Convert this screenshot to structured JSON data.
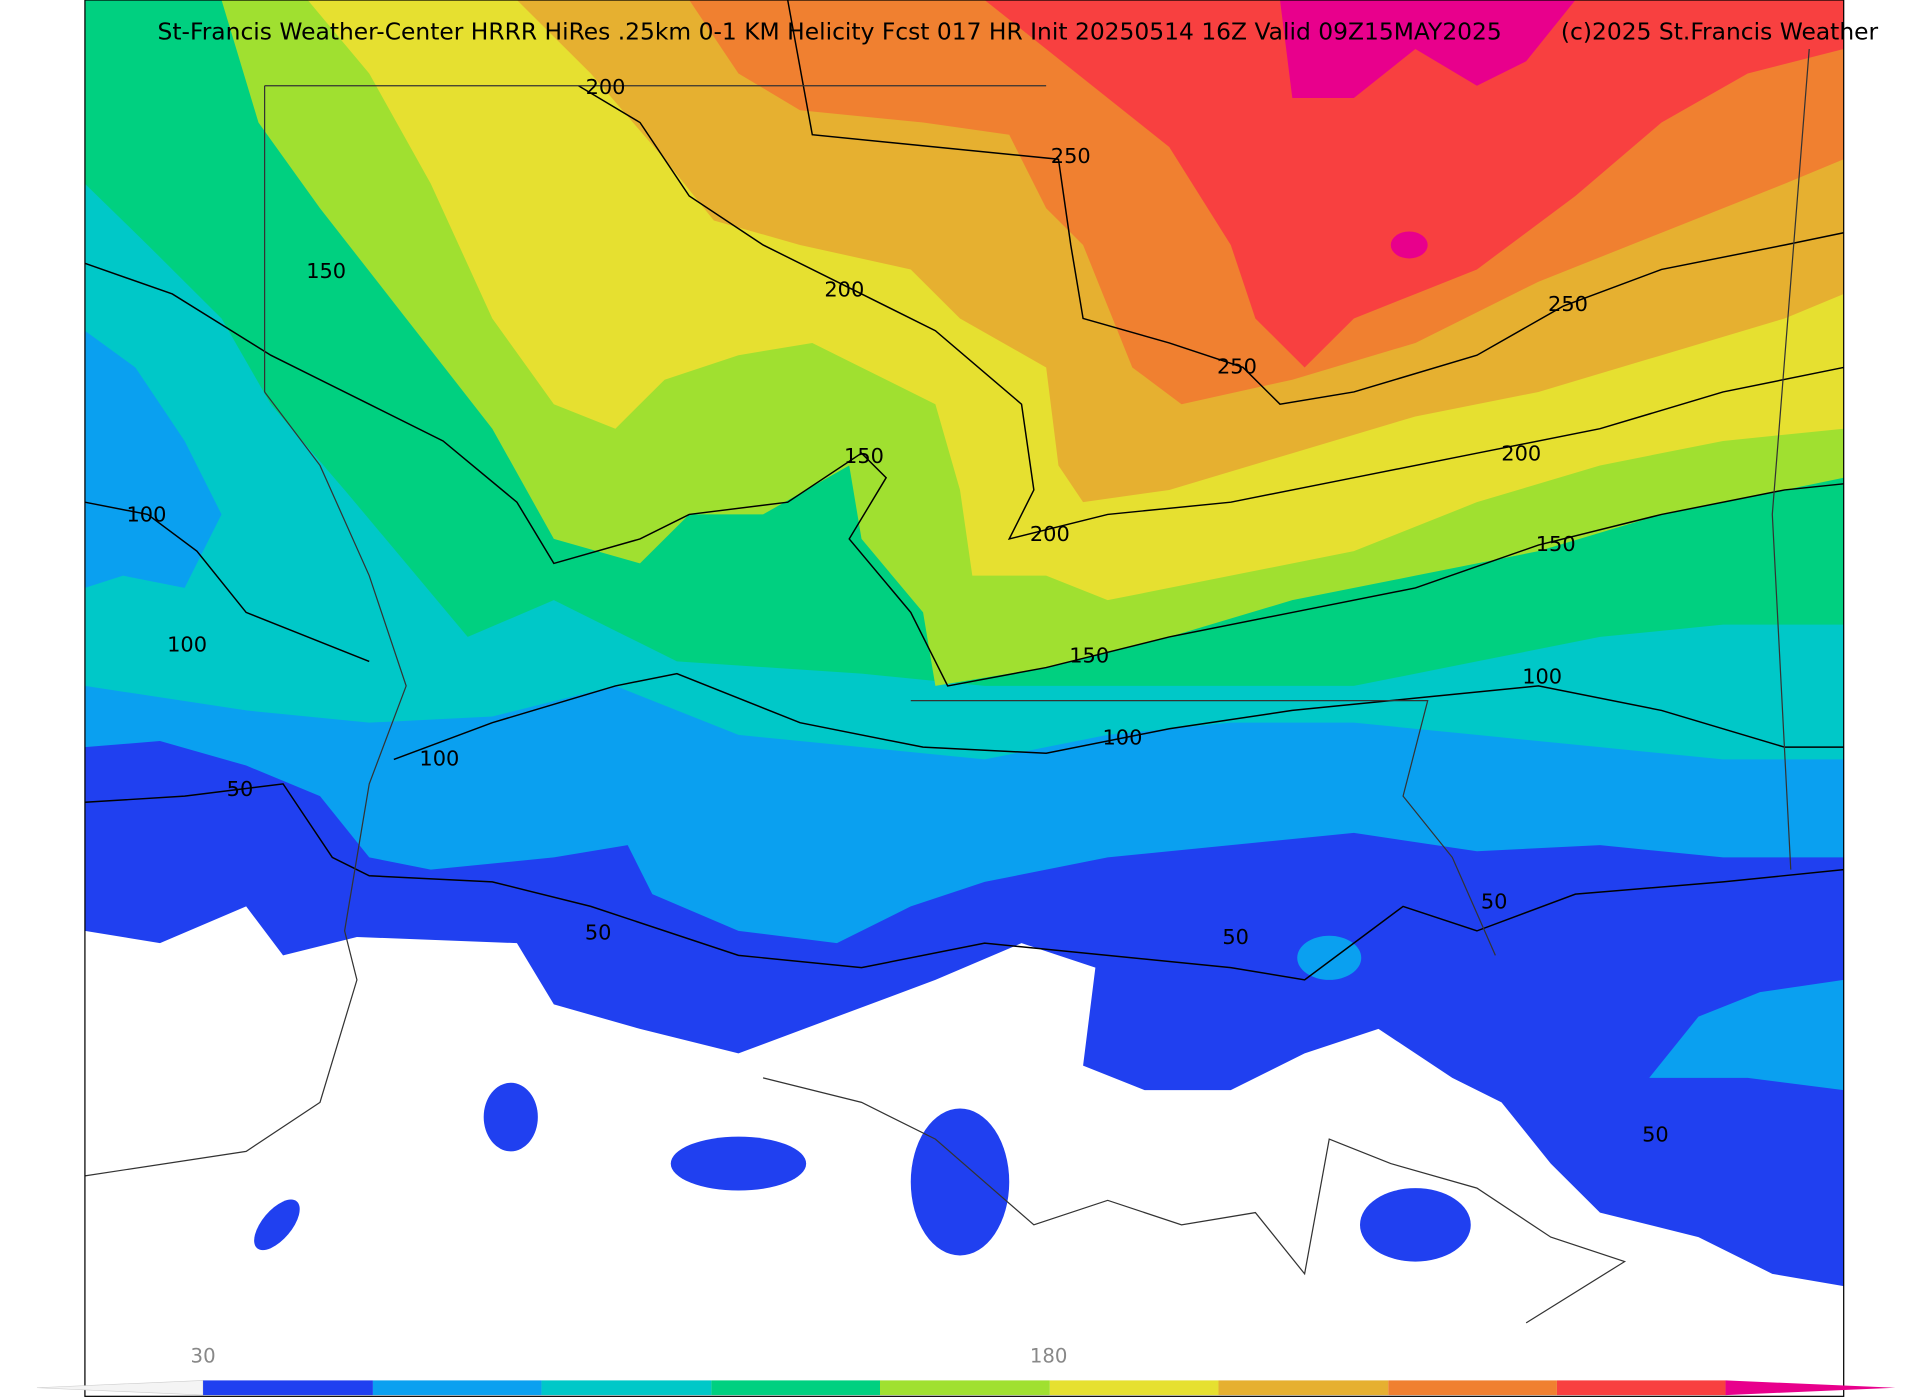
{
  "header": {
    "title": "St-Francis Weather-Center HRRR HiRes .25km 0-1 KM Helicity Fcst 017 HR Init 20250514 16Z  Valid 09Z15MAY2025",
    "credit": "(c)2025 St.Francis Weather"
  },
  "contour_labels": [
    200,
    250,
    150,
    200,
    250,
    250,
    150,
    200,
    100,
    200,
    150,
    100,
    150,
    100,
    100,
    100,
    50,
    50,
    50,
    50,
    50
  ],
  "colorbar": {
    "labels": [
      "30",
      "180"
    ]
  }
}
